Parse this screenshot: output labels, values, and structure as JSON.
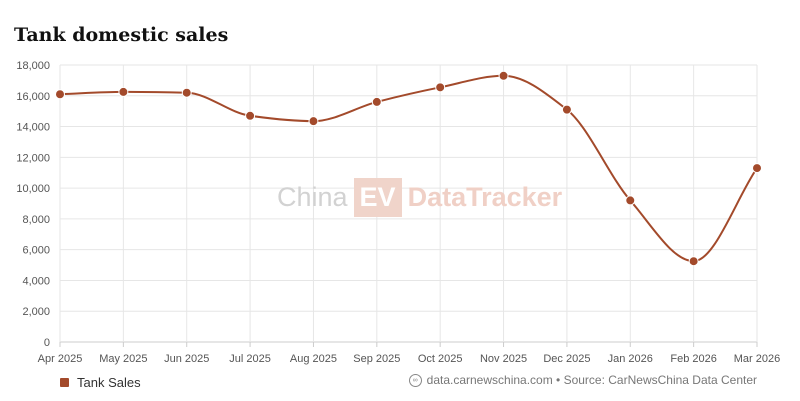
{
  "title": "Tank domestic sales",
  "watermark": {
    "part1": "China",
    "part2": "EV",
    "part3": "DataTracker"
  },
  "legend": {
    "label": "Tank Sales"
  },
  "source": {
    "icon": "globe-icon",
    "text": "data.carnewschina.com • Source: CarNewsChina Data Center"
  },
  "colors": {
    "series": "#a34a2b",
    "grid": "#e6e6e6",
    "axis": "#cccccc",
    "tick_text": "#555555"
  },
  "chart_data": {
    "type": "line",
    "title": "Tank domestic sales",
    "xlabel": "",
    "ylabel": "",
    "categories": [
      "Apr 2025",
      "May 2025",
      "Jun 2025",
      "Jul 2025",
      "Aug 2025",
      "Sep 2025",
      "Oct 2025",
      "Nov 2025",
      "Dec 2025",
      "Jan 2026",
      "Feb 2026",
      "Mar 2026"
    ],
    "series": [
      {
        "name": "Tank Sales",
        "values": [
          16100,
          16250,
          16200,
          14700,
          14350,
          15600,
          16550,
          17300,
          15100,
          9200,
          5250,
          11300
        ]
      }
    ],
    "ylim": [
      0,
      18000
    ],
    "yticks": [
      0,
      2000,
      4000,
      6000,
      8000,
      10000,
      12000,
      14000,
      16000,
      18000
    ],
    "ytick_labels": [
      "0",
      "2,000",
      "4,000",
      "6,000",
      "8,000",
      "10,000",
      "12,000",
      "14,000",
      "16,000",
      "18,000"
    ],
    "grid": true,
    "smooth": true,
    "legend_position": "bottom-left"
  }
}
